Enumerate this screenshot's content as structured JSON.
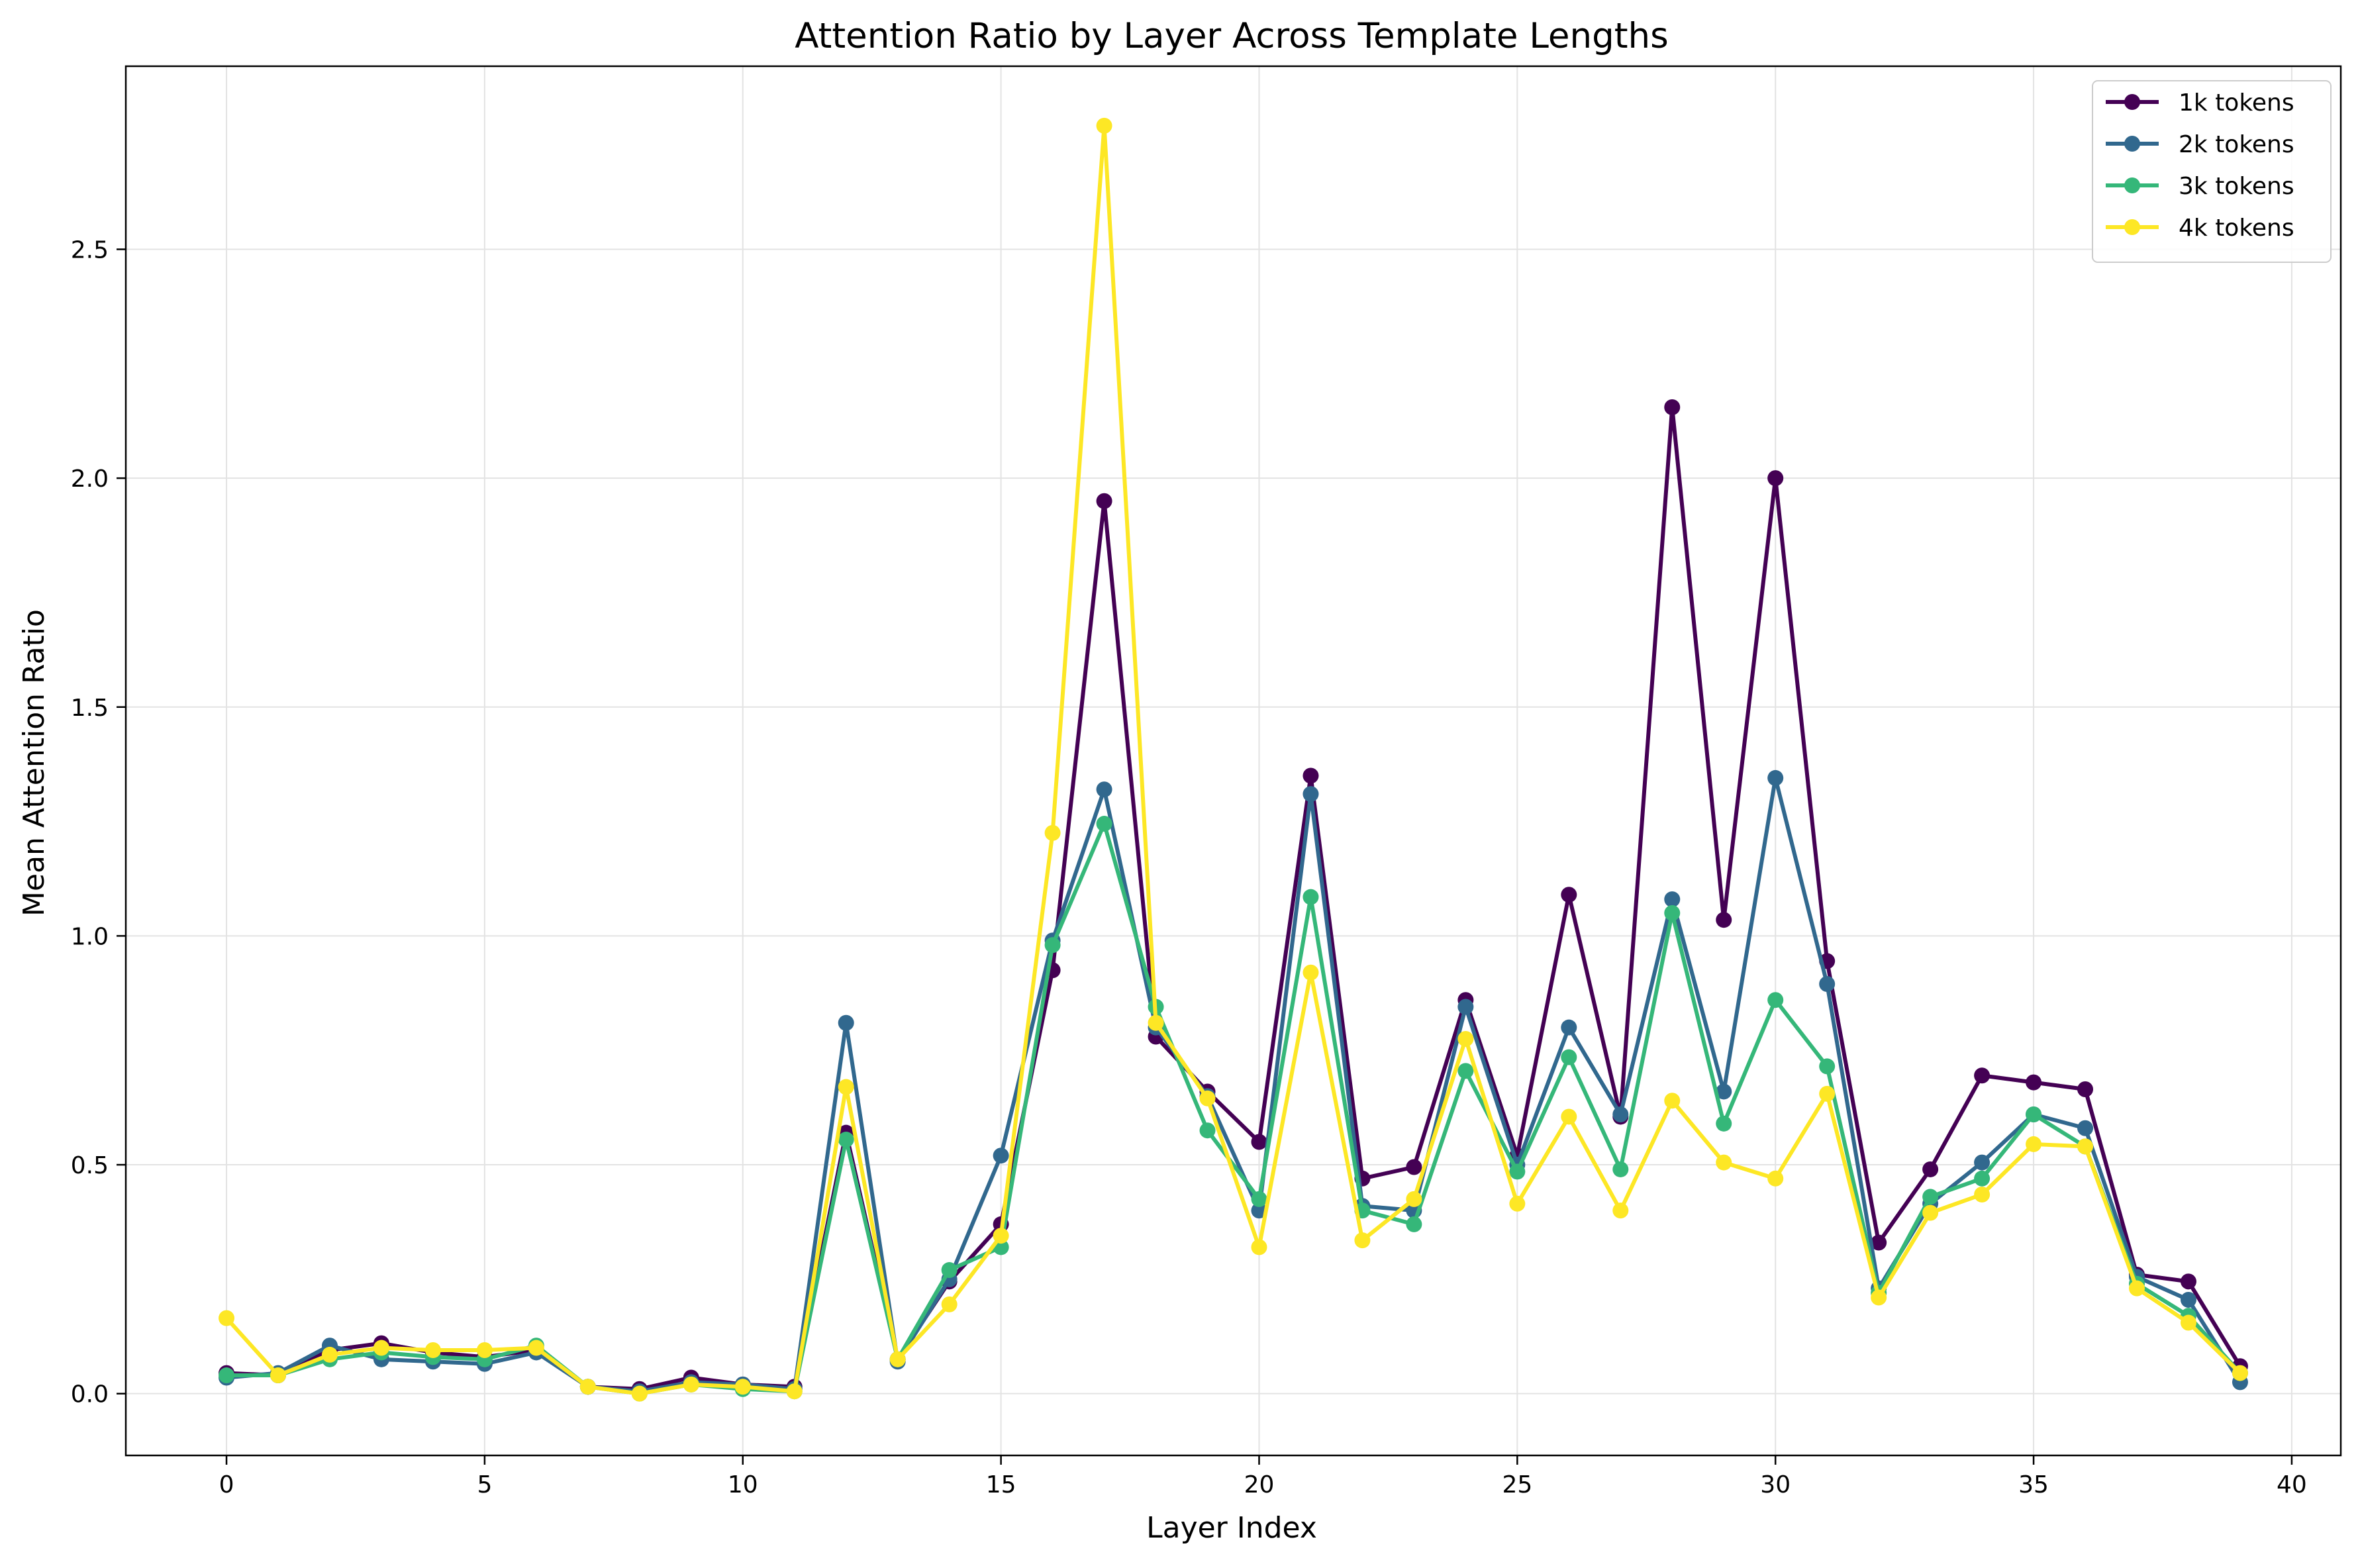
{
  "chart_data": {
    "type": "line",
    "title": "Attention Ratio by Layer Across Template Lengths",
    "xlabel": "Layer Index",
    "ylabel": "Mean Attention Ratio",
    "xlim": [
      -1.95,
      40.95
    ],
    "ylim": [
      -0.135,
      2.9
    ],
    "xticks": [
      0,
      5,
      10,
      15,
      20,
      25,
      30,
      35,
      40
    ],
    "xtick_labels": [
      "0",
      "5",
      "10",
      "15",
      "20",
      "25",
      "30",
      "35",
      "40"
    ],
    "yticks": [
      0.0,
      0.5,
      1.0,
      1.5,
      2.0,
      2.5
    ],
    "ytick_labels": [
      "0.0",
      "0.5",
      "1.0",
      "1.5",
      "2.0",
      "2.5"
    ],
    "grid": true,
    "legend_position": "top-right",
    "x": [
      0,
      1,
      2,
      3,
      4,
      5,
      6,
      7,
      8,
      9,
      10,
      11,
      12,
      13,
      14,
      15,
      16,
      17,
      18,
      19,
      20,
      21,
      22,
      23,
      24,
      25,
      26,
      27,
      28,
      29,
      30,
      31,
      32,
      33,
      34,
      35,
      36,
      37,
      38,
      39
    ],
    "series": [
      {
        "name": "1k tokens",
        "color": "#440154",
        "values": [
          0.045,
          0.04,
          0.095,
          0.11,
          0.09,
          0.08,
          0.095,
          0.015,
          0.01,
          0.035,
          0.02,
          0.015,
          0.57,
          0.075,
          0.245,
          0.37,
          0.925,
          1.95,
          0.78,
          0.66,
          0.55,
          1.35,
          0.47,
          0.495,
          0.86,
          0.52,
          1.09,
          0.605,
          2.155,
          1.035,
          2.0,
          0.945,
          0.33,
          0.49,
          0.695,
          0.68,
          0.665,
          0.26,
          0.245,
          0.06
        ]
      },
      {
        "name": "2k tokens",
        "color": "#31688e",
        "values": [
          0.035,
          0.045,
          0.105,
          0.075,
          0.07,
          0.065,
          0.09,
          0.015,
          0.005,
          0.025,
          0.02,
          0.01,
          0.81,
          0.07,
          0.25,
          0.52,
          0.99,
          1.32,
          0.8,
          0.65,
          0.4,
          1.31,
          0.41,
          0.4,
          0.845,
          0.5,
          0.8,
          0.61,
          1.08,
          0.66,
          1.345,
          0.895,
          0.23,
          0.415,
          0.505,
          0.61,
          0.58,
          0.255,
          0.205,
          0.025
        ]
      },
      {
        "name": "3k tokens",
        "color": "#35b779",
        "values": [
          0.04,
          0.04,
          0.075,
          0.09,
          0.08,
          0.075,
          0.105,
          0.015,
          0.0,
          0.02,
          0.01,
          0.005,
          0.555,
          0.075,
          0.27,
          0.32,
          0.98,
          1.245,
          0.845,
          0.575,
          0.425,
          1.085,
          0.4,
          0.37,
          0.705,
          0.485,
          0.735,
          0.49,
          1.05,
          0.59,
          0.86,
          0.715,
          0.22,
          0.43,
          0.47,
          0.61,
          0.54,
          0.24,
          0.17,
          0.045
        ]
      },
      {
        "name": "4k tokens",
        "color": "#fde725",
        "values": [
          0.165,
          0.04,
          0.085,
          0.1,
          0.095,
          0.095,
          0.1,
          0.015,
          0.0,
          0.02,
          0.015,
          0.005,
          0.67,
          0.075,
          0.195,
          0.345,
          1.225,
          2.77,
          0.81,
          0.645,
          0.32,
          0.92,
          0.335,
          0.425,
          0.775,
          0.415,
          0.605,
          0.4,
          0.64,
          0.505,
          0.47,
          0.655,
          0.21,
          0.395,
          0.435,
          0.545,
          0.54,
          0.23,
          0.155,
          0.045
        ]
      }
    ]
  }
}
